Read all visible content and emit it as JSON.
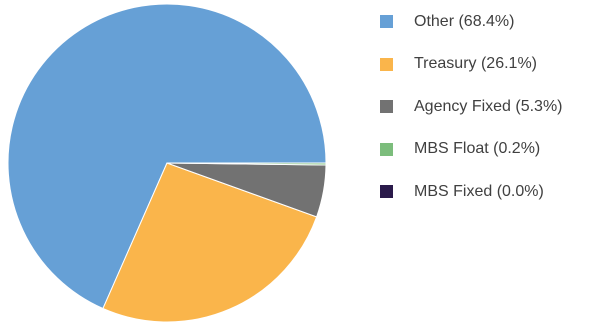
{
  "chart_data": {
    "type": "pie",
    "slices": [
      {
        "label": "Other",
        "value": 68.4,
        "display": "Other (68.4%)",
        "color": "#66a0d6"
      },
      {
        "label": "Treasury",
        "value": 26.1,
        "display": "Treasury (26.1%)",
        "color": "#fab54b"
      },
      {
        "label": "Agency Fixed",
        "value": 5.3,
        "display": "Agency Fixed (5.3%)",
        "color": "#727272"
      },
      {
        "label": "MBS Float",
        "value": 0.2,
        "display": "MBS Float (0.2%)",
        "color": "#7cbd7c"
      },
      {
        "label": "MBS Fixed",
        "value": 0.0,
        "display": "MBS Fixed (0.0%)",
        "color": "#2a1a4a"
      }
    ],
    "start_angle_deg": 0,
    "direction": "counterclockwise",
    "legend_position": "right"
  }
}
